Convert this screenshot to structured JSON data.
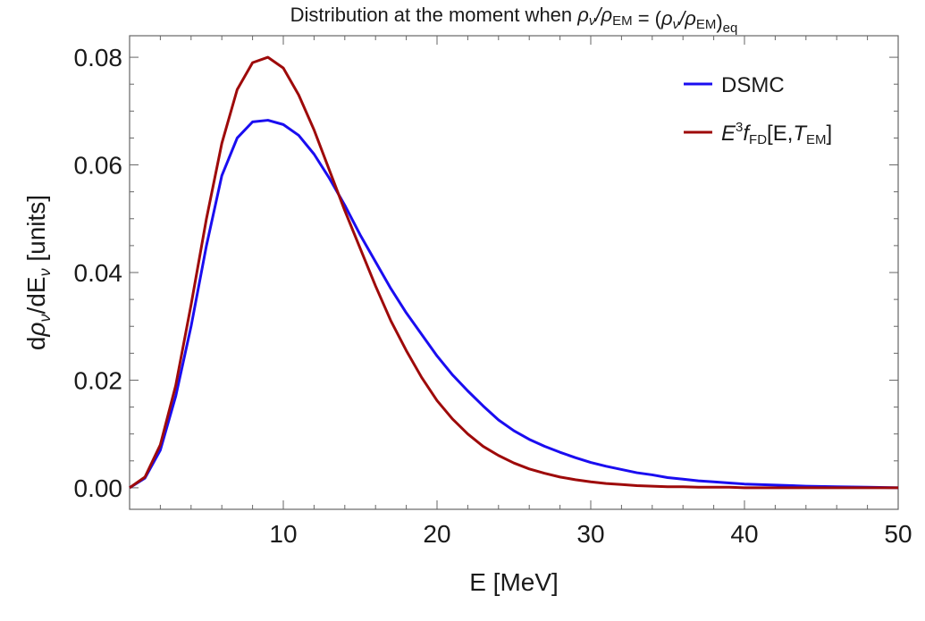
{
  "chart_data": {
    "type": "line",
    "title": "Distribution at the moment when ρν/ρEM = (ρν/ρEM)eq",
    "xlabel": "E [MeV]",
    "ylabel": "dρν/dEν [units]",
    "xlim": [
      0,
      50
    ],
    "ylim": [
      -0.004,
      0.084
    ],
    "xticks": [
      10,
      20,
      30,
      40,
      50
    ],
    "yticks": [
      0.0,
      0.02,
      0.04,
      0.06,
      0.08
    ],
    "ytick_labels": [
      "0.00",
      "0.02",
      "0.04",
      "0.06",
      "0.08"
    ],
    "grid": false,
    "legend_position": "top-right",
    "series": [
      {
        "name": "DSMC",
        "color": "#1a0df0",
        "x": [
          0,
          1,
          2,
          3,
          4,
          5,
          6,
          7,
          8,
          9,
          10,
          11,
          12,
          13,
          14,
          15,
          16,
          17,
          18,
          19,
          20,
          21,
          22,
          23,
          24,
          25,
          26,
          27,
          28,
          29,
          30,
          31,
          32,
          33,
          34,
          35,
          36,
          37,
          38,
          39,
          40,
          42,
          44,
          46,
          48,
          50
        ],
        "y": [
          0.0,
          0.0018,
          0.007,
          0.017,
          0.03,
          0.045,
          0.058,
          0.065,
          0.068,
          0.0683,
          0.0675,
          0.0655,
          0.062,
          0.0575,
          0.0525,
          0.047,
          0.042,
          0.037,
          0.0325,
          0.0285,
          0.0245,
          0.021,
          0.018,
          0.0152,
          0.0126,
          0.0106,
          0.009,
          0.0077,
          0.0066,
          0.0056,
          0.0047,
          0.004,
          0.0034,
          0.0028,
          0.0024,
          0.0019,
          0.0016,
          0.0013,
          0.0011,
          0.0009,
          0.0007,
          0.0005,
          0.0003,
          0.0002,
          0.0001,
          0.0
        ]
      },
      {
        "name": "E3fFD[E,TEM]",
        "color": "#9e0a0a",
        "x": [
          0,
          1,
          2,
          3,
          4,
          5,
          6,
          7,
          8,
          9,
          10,
          11,
          12,
          13,
          14,
          15,
          16,
          17,
          18,
          19,
          20,
          21,
          22,
          23,
          24,
          25,
          26,
          27,
          28,
          29,
          30,
          31,
          32,
          33,
          34,
          35,
          36,
          37,
          38,
          39,
          40,
          42,
          44,
          46,
          48,
          50
        ],
        "y": [
          0.0,
          0.002,
          0.008,
          0.019,
          0.034,
          0.05,
          0.064,
          0.074,
          0.079,
          0.08,
          0.078,
          0.073,
          0.0665,
          0.059,
          0.0515,
          0.0445,
          0.0375,
          0.031,
          0.0255,
          0.0205,
          0.0162,
          0.0128,
          0.01,
          0.0077,
          0.006,
          0.0046,
          0.0035,
          0.0027,
          0.002,
          0.0015,
          0.0011,
          0.0008,
          0.0006,
          0.0004,
          0.0003,
          0.0002,
          0.0002,
          0.0001,
          0.0001,
          0.0001,
          0.0,
          0.0,
          0.0,
          0.0,
          0.0,
          0.0
        ]
      }
    ]
  }
}
